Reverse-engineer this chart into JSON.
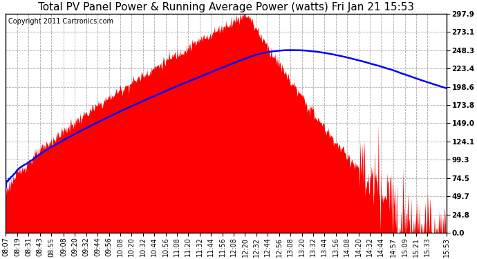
{
  "title": "Total PV Panel Power & Running Average Power (watts) Fri Jan 21 15:53",
  "copyright_text": "Copyright 2011 Cartronics.com",
  "ytick_labels": [
    "0.0",
    "24.8",
    "49.7",
    "74.5",
    "99.3",
    "124.1",
    "149.0",
    "173.8",
    "198.6",
    "223.4",
    "248.3",
    "273.1",
    "297.9"
  ],
  "ytick_values": [
    0.0,
    24.8,
    49.7,
    74.5,
    99.3,
    124.1,
    149.0,
    173.8,
    198.6,
    223.4,
    248.3,
    273.1,
    297.9
  ],
  "fill_color": "#FF0000",
  "line_color": "#0000FF",
  "background_color": "#FFFFFF",
  "grid_color": "#AAAAAA",
  "title_fontsize": 11,
  "copyright_fontsize": 7,
  "tick_fontsize": 7.5,
  "x_tick_labels": [
    "08:07",
    "08:19",
    "08:31",
    "08:43",
    "08:55",
    "09:08",
    "09:20",
    "09:32",
    "09:44",
    "09:56",
    "10:08",
    "10:20",
    "10:32",
    "10:44",
    "10:56",
    "11:08",
    "11:20",
    "11:32",
    "11:44",
    "11:56",
    "12:08",
    "12:20",
    "12:32",
    "12:44",
    "12:56",
    "13:08",
    "13:20",
    "13:32",
    "13:44",
    "13:56",
    "14:08",
    "14:20",
    "14:32",
    "14:44",
    "14:57",
    "15:09",
    "15:21",
    "15:33",
    "15:53"
  ]
}
